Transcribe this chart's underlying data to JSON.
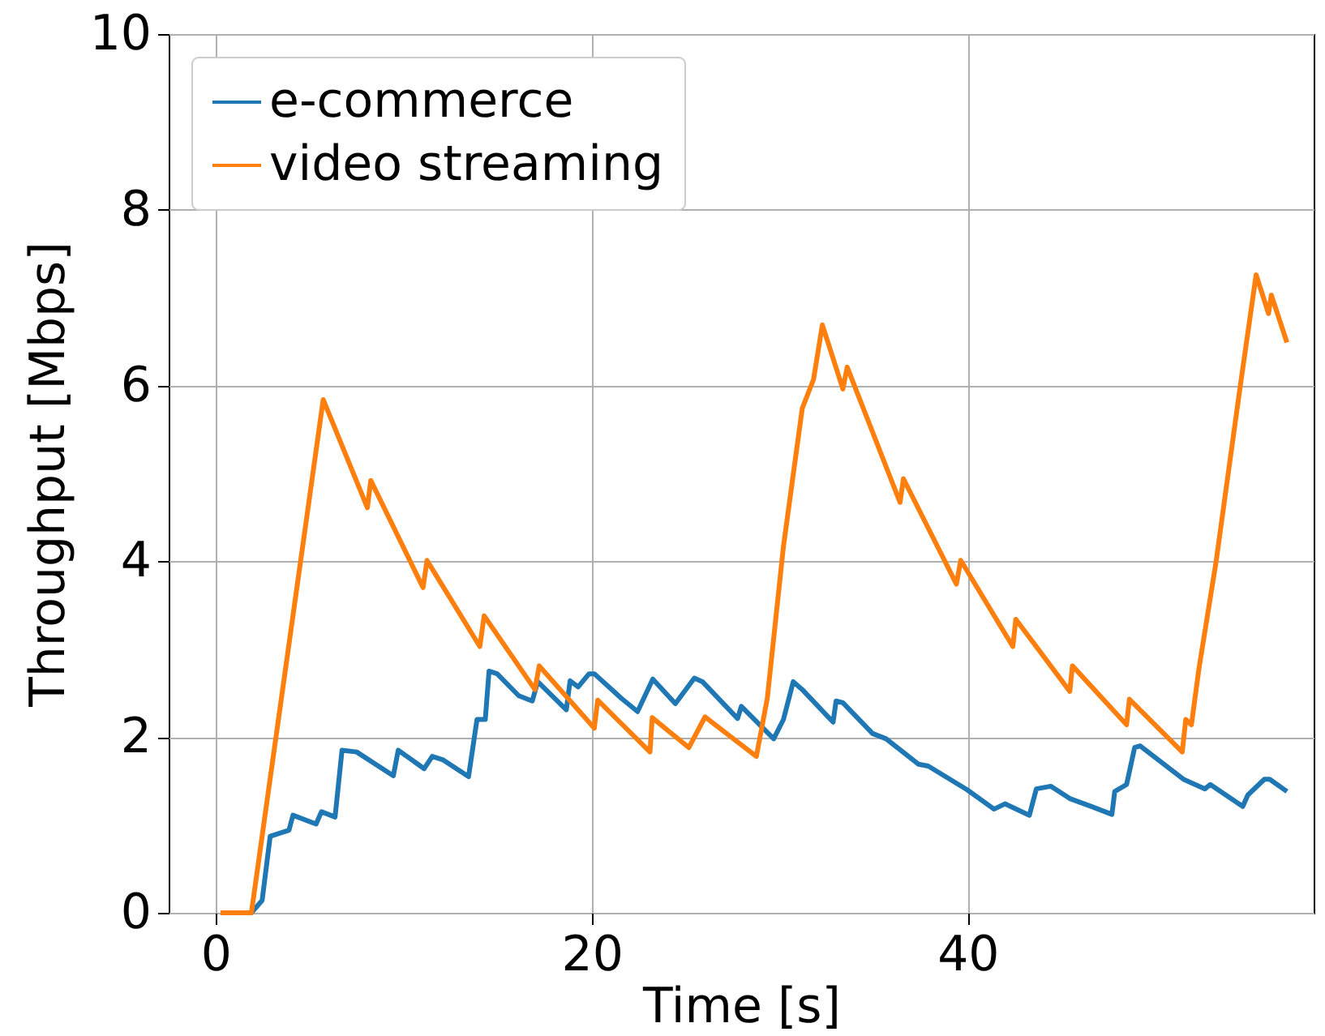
{
  "chart_data": {
    "type": "line",
    "xlabel": "Time [s]",
    "ylabel": "Throughput [Mbps]",
    "xlim": [
      -2.5,
      58.4
    ],
    "xticks": [
      0,
      20,
      40
    ],
    "ylim": [
      0,
      10
    ],
    "yticks": [
      0,
      2,
      4,
      6,
      8,
      10
    ],
    "grid": true,
    "legend": "top left",
    "line_style": "solid",
    "series": [
      {
        "name": "e-commerce",
        "color": "#1f77b4",
        "x": [
          0.26,
          1.9,
          2.47,
          2.9,
          3.9,
          4.11,
          5.34,
          5.63,
          6.35,
          6.72,
          7.5,
          9.45,
          9.71,
          11.09,
          11.52,
          12.1,
          13.45,
          13.9,
          14.34,
          14.54,
          14.97,
          16.12,
          16.84,
          17.13,
          18.65,
          18.85,
          19.28,
          19.86,
          20.14,
          21.58,
          22.44,
          23.25,
          24.45,
          25.46,
          25.89,
          27.76,
          27.96,
          29.68,
          30.2,
          30.72,
          31.2,
          32.84,
          33.0,
          33.36,
          34.94,
          35.66,
          37.39,
          37.9,
          39.97,
          41.4,
          41.98,
          43.28,
          43.65,
          44.43,
          45.43,
          46.58,
          47.67,
          47.82,
          48.45,
          48.88,
          49.17,
          51.47,
          52.62,
          52.9,
          54.63,
          54.9,
          55.78,
          56.06,
          56.98
        ],
        "values": [
          0,
          0,
          0.14,
          0.87,
          0.94,
          1.11,
          1.01,
          1.15,
          1.09,
          1.85,
          1.83,
          1.56,
          1.85,
          1.64,
          1.78,
          1.74,
          1.55,
          2.2,
          2.2,
          2.75,
          2.72,
          2.47,
          2.41,
          2.63,
          2.31,
          2.64,
          2.57,
          2.72,
          2.72,
          2.44,
          2.29,
          2.66,
          2.38,
          2.67,
          2.63,
          2.21,
          2.35,
          1.98,
          2.2,
          2.63,
          2.54,
          2.17,
          2.41,
          2.39,
          2.04,
          1.98,
          1.69,
          1.67,
          1.4,
          1.18,
          1.24,
          1.11,
          1.41,
          1.44,
          1.3,
          1.21,
          1.12,
          1.38,
          1.46,
          1.88,
          1.9,
          1.52,
          1.41,
          1.46,
          1.21,
          1.34,
          1.52,
          1.52,
          1.38
        ]
      },
      {
        "name": "video streaming",
        "color": "#ff7f0e",
        "x": [
          0.26,
          1.9,
          5.72,
          8.07,
          8.25,
          11.03,
          11.24,
          14.05,
          14.28,
          16.98,
          17.21,
          20.14,
          20.32,
          23.1,
          23.22,
          25.17,
          26.03,
          27.3,
          28.76,
          29.34,
          30.2,
          31.2,
          31.8,
          32.27,
          33.36,
          33.59,
          36.4,
          36.58,
          39.4,
          39.63,
          42.4,
          42.56,
          45.43,
          45.57,
          48.45,
          48.6,
          51.41,
          51.6,
          51.9,
          52.3,
          53.2,
          54.5,
          55.34,
          56.0,
          56.15,
          56.98
        ],
        "values": [
          0,
          0,
          5.84,
          4.61,
          4.92,
          3.7,
          4.01,
          3.03,
          3.38,
          2.54,
          2.81,
          2.1,
          2.42,
          1.83,
          2.22,
          1.88,
          2.23,
          2.02,
          1.78,
          2.44,
          4.17,
          5.74,
          6.07,
          6.69,
          5.96,
          6.21,
          4.67,
          4.94,
          3.74,
          4.01,
          3.03,
          3.34,
          2.52,
          2.81,
          2.14,
          2.43,
          1.83,
          2.2,
          2.14,
          2.78,
          3.98,
          6.0,
          7.26,
          6.82,
          7.03,
          6.49
        ]
      }
    ]
  }
}
